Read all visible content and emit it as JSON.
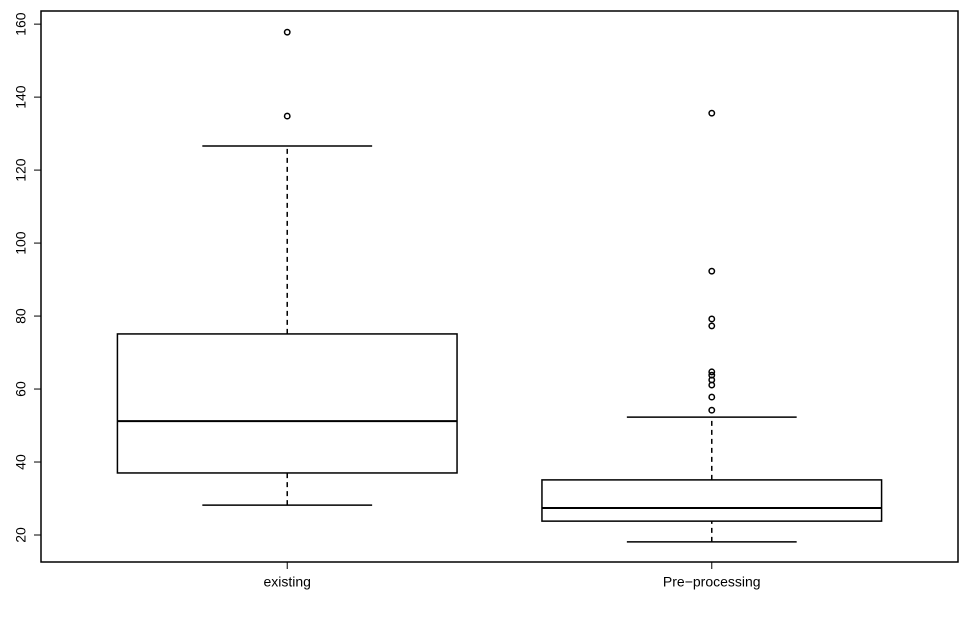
{
  "chart_data": {
    "type": "box",
    "categories": [
      "existing",
      "Pre−processing"
    ],
    "boxes": [
      {
        "whislo": 28.2,
        "q1": 37.0,
        "med": 51.2,
        "q3": 75.1,
        "whishi": 126.6,
        "fliers": [
          157.8,
          134.8
        ]
      },
      {
        "whislo": 18.1,
        "q1": 23.8,
        "med": 27.4,
        "q3": 35.1,
        "whishi": 52.3,
        "fliers": [
          135.6,
          92.3,
          79.2,
          77.3,
          64.7,
          63.8,
          62.5,
          61.1,
          57.8,
          54.2
        ]
      }
    ],
    "color": "#000000",
    "ylim": [
      12.6,
      163.6
    ],
    "yticks": [
      20,
      40,
      60,
      80,
      100,
      120,
      140,
      160
    ]
  }
}
